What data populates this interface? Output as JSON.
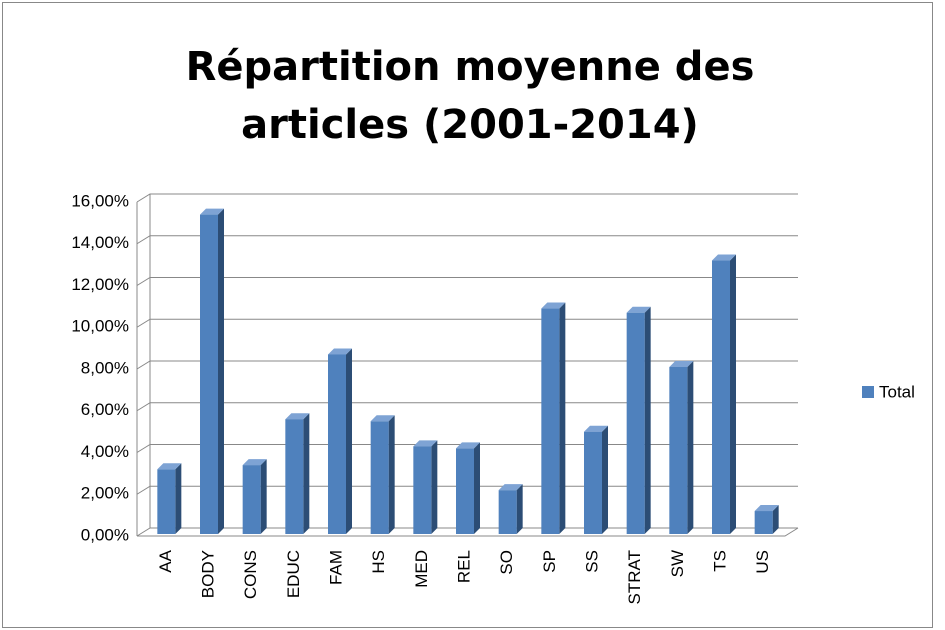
{
  "chart_data": {
    "type": "bar3d",
    "title": "Répartition moyenne des articles (2001-2014)",
    "categories": [
      "AA",
      "BODY",
      "CONS",
      "EDUC",
      "FAM",
      "HS",
      "MED",
      "REL",
      "SO",
      "SP",
      "SS",
      "STRAT",
      "SW",
      "TS",
      "US"
    ],
    "series": [
      {
        "name": "Total",
        "color": "#4f81bd",
        "values": [
          3.1,
          15.3,
          3.3,
          5.5,
          8.6,
          5.4,
          4.2,
          4.1,
          2.1,
          10.8,
          4.9,
          10.6,
          8.0,
          13.1,
          1.1
        ]
      }
    ],
    "ylim": [
      0,
      16
    ],
    "yticks": [
      {
        "value": 0,
        "label": "0,00%"
      },
      {
        "value": 2,
        "label": "2,00%"
      },
      {
        "value": 4,
        "label": "4,00%"
      },
      {
        "value": 6,
        "label": "6,00%"
      },
      {
        "value": 8,
        "label": "8,00%"
      },
      {
        "value": 10,
        "label": "10,00%"
      },
      {
        "value": 12,
        "label": "12,00%"
      },
      {
        "value": 14,
        "label": "14,00%"
      },
      {
        "value": 16,
        "label": "16,00%"
      }
    ],
    "grid": true,
    "legend": "right"
  }
}
